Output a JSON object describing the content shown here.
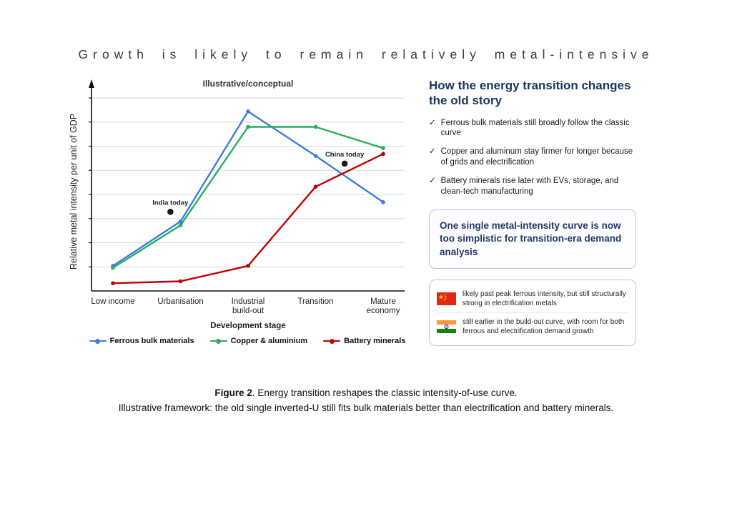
{
  "page": {
    "title": "Growth is likely to remain relatively metal-intensive"
  },
  "chart_data": {
    "type": "line",
    "title": "Illustrative/conceptual",
    "xlabel": "Development stage",
    "ylabel": "Relative metal intensity per unit of GDP",
    "categories": [
      "Low income",
      "Urbanisation",
      "Industrial\nbuild-out",
      "Transition",
      "Mature\neconomy"
    ],
    "ylim": [
      0,
      100
    ],
    "grid": true,
    "legend_position": "bottom",
    "series": [
      {
        "name": "Ferrous bulk materials",
        "color": "#3b7dde",
        "values": [
          13,
          36,
          93,
          70,
          46
        ]
      },
      {
        "name": "Copper & aluminium",
        "color": "#27ae60",
        "values": [
          12,
          34,
          85,
          85,
          74
        ]
      },
      {
        "name": "Battery minerals",
        "color": "#c00000",
        "values": [
          4,
          5,
          13,
          54,
          71
        ]
      }
    ],
    "annotations": [
      {
        "label": "India today",
        "x": 0.85,
        "y": 41
      },
      {
        "label": "China today",
        "x": 3.43,
        "y": 66
      }
    ]
  },
  "side_panel": {
    "heading": "How the energy transition changes the old story",
    "check_glyph": "✓",
    "bullets": [
      "Ferrous bulk materials still broadly follow the classic curve",
      "Copper and aluminum stay firmer for longer because of grids and electrification",
      "Battery minerals rise later with EVs, storage, and clean-tech manufacturing"
    ],
    "callout": "One single metal-intensity curve is now too simplistic for transition-era demand analysis",
    "country_notes": [
      {
        "country": "China",
        "text": "likely past peak ferrous intensity, but still structurally strong in electrification metals"
      },
      {
        "country": "India",
        "text": "still earlier in the build-out curve, with room for both ferrous and electrification demand growth"
      }
    ]
  },
  "caption": {
    "figure_label": "Figure 2",
    "line1_rest": ". Energy transition reshapes the classic intensity-of-use curve.",
    "line2": "Illustrative framework: the old single inverted-U still fits bulk materials better than electrification and battery minerals."
  }
}
